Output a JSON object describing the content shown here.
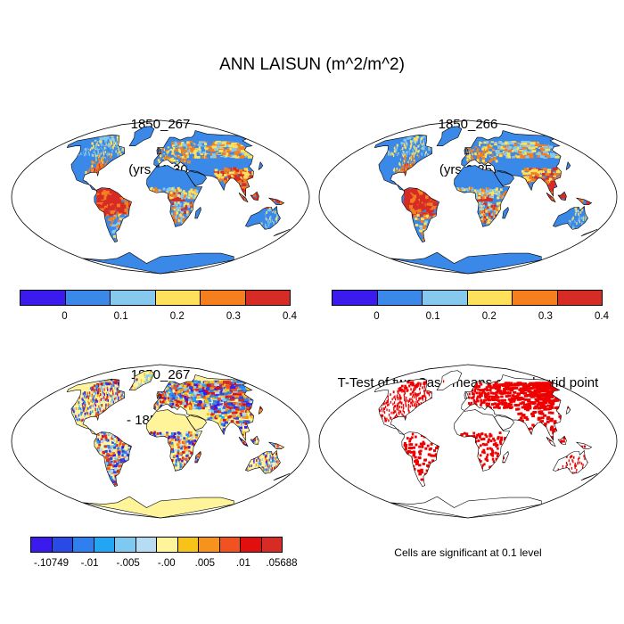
{
  "main_title": "ANN LAISUN (m^2/m^2)",
  "panels": {
    "top_left": {
      "title_line1": "1850_267",
      "title_line2": "(yrs 11-30)"
    },
    "top_right": {
      "title_line1": "1850_266",
      "title_line2": "(yrs 6-25)"
    },
    "bottom_left": {
      "title_line1": "1850_267",
      "title_line2": "- 1850_266"
    },
    "bottom_right": {
      "title_line1": "T-Test of two Case means at each grid point"
    }
  },
  "colorbar_laisun": {
    "colors": [
      "#3b1aed",
      "#3a88e8",
      "#87c9ee",
      "#fde15a",
      "#f57e1e",
      "#d72b25"
    ],
    "tick_labels": [
      "0",
      "0.1",
      "0.2",
      "0.3",
      "0.4"
    ]
  },
  "colorbar_diff": {
    "colors": [
      "#3b1aed",
      "#2a4ae8",
      "#2f7fee",
      "#22a6f4",
      "#7dc9f0",
      "#b5dcf3",
      "#fff49a",
      "#f7c319",
      "#f7921c",
      "#f2521f",
      "#e20f0f",
      "#d72b25"
    ],
    "tick_labels": [
      "-.10749",
      "-.01",
      "-.005",
      "-.00",
      ".005",
      ".01",
      ".05688"
    ]
  },
  "significance_note": "Cells are significant at 0.1 level",
  "colors": {
    "land_base": "#3a88e8",
    "tropics": "#d72b25",
    "dry": "#fde15a",
    "significant": "#ee0000",
    "diff_base": "#fff49a"
  },
  "chart_data": [
    {
      "type": "heatmap",
      "title": "1850_267 (yrs 11-30)",
      "variable": "ANN LAISUN (m^2/m^2)",
      "colorbar_levels": [
        0,
        0.1,
        0.2,
        0.3,
        0.4
      ]
    },
    {
      "type": "heatmap",
      "title": "1850_266 (yrs 6-25)",
      "variable": "ANN LAISUN (m^2/m^2)",
      "colorbar_levels": [
        0,
        0.1,
        0.2,
        0.3,
        0.4
      ]
    },
    {
      "type": "heatmap",
      "title": "1850_267 - 1850_266",
      "colorbar_levels": [
        -0.10749,
        -0.01,
        -0.005,
        -0.0,
        0.005,
        0.01,
        0.05688
      ]
    },
    {
      "type": "heatmap",
      "title": "T-Test of two Case means at each grid point",
      "note": "Cells are significant at 0.1 level"
    }
  ]
}
